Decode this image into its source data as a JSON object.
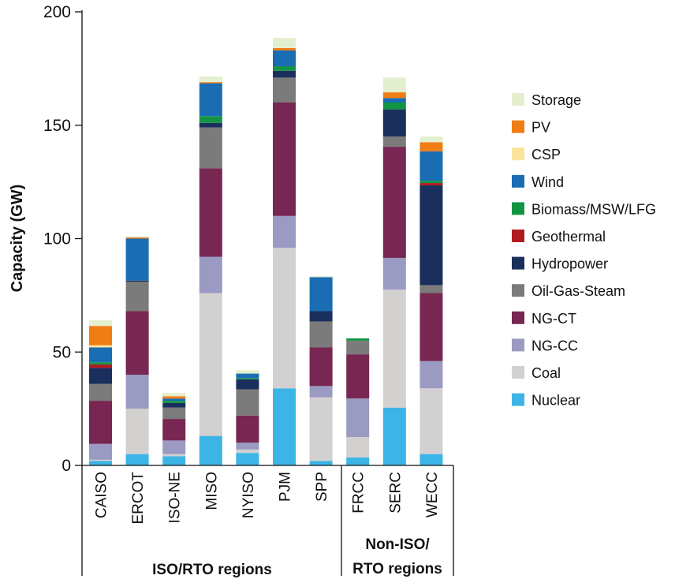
{
  "chart_data": {
    "type": "bar",
    "stacked": true,
    "title": "",
    "xlabel": "",
    "ylabel": "Capacity (GW)",
    "ylim": [
      0,
      200
    ],
    "yticks": [
      0,
      50,
      100,
      150,
      200
    ],
    "grid": false,
    "legend_position": "right",
    "categories": [
      "CAISO",
      "ERCOT",
      "ISO-NE",
      "MISO",
      "NYISO",
      "PJM",
      "SPP",
      "FRCC",
      "SERC",
      "WECC"
    ],
    "groups": [
      {
        "label": "ISO/RTO regions",
        "categories": [
          "CAISO",
          "ERCOT",
          "ISO-NE",
          "MISO",
          "NYISO",
          "PJM",
          "SPP"
        ]
      },
      {
        "label_lines": [
          "Non-ISO/",
          "RTO regions"
        ],
        "categories": [
          "FRCC",
          "SERC",
          "WECC"
        ]
      }
    ],
    "series": [
      {
        "name": "Nuclear",
        "color": "#3db4e6",
        "values": [
          2,
          5,
          4,
          13,
          5.5,
          34,
          2,
          3.5,
          25.5,
          5
        ]
      },
      {
        "name": "Coal",
        "color": "#d3d0d0",
        "values": [
          0.5,
          20,
          1,
          63,
          1.5,
          62,
          28,
          9,
          52,
          29
        ]
      },
      {
        "name": "NG-CC",
        "color": "#9b9ac2",
        "values": [
          7,
          15,
          6,
          16,
          3,
          14,
          5,
          17,
          14,
          12
        ]
      },
      {
        "name": "NG-CT",
        "color": "#772752",
        "values": [
          19,
          28,
          9.5,
          39,
          12,
          50,
          17,
          19.5,
          49,
          30
        ]
      },
      {
        "name": "Oil-Gas-Steam",
        "color": "#7b7b7b",
        "values": [
          7.5,
          13,
          5,
          18,
          11.5,
          11,
          11.5,
          6,
          4.5,
          3.5
        ]
      },
      {
        "name": "Hydropower",
        "color": "#1b2f5c",
        "values": [
          7,
          0.5,
          2,
          2,
          4.5,
          3,
          4.5,
          0,
          12,
          44
        ]
      },
      {
        "name": "Geothermal",
        "color": "#b11a20",
        "values": [
          1.5,
          0,
          0,
          0,
          0,
          0,
          0,
          0,
          0,
          1
        ]
      },
      {
        "name": "Biomass/MSW/LFG",
        "color": "#139443",
        "values": [
          1,
          0,
          1,
          3,
          0.5,
          2,
          0,
          1,
          3,
          1
        ]
      },
      {
        "name": "Wind",
        "color": "#1a6db3",
        "values": [
          6.5,
          18.5,
          1,
          14.5,
          2,
          7,
          15,
          0,
          2,
          13
        ]
      },
      {
        "name": "CSP",
        "color": "#fbe39a",
        "values": [
          1,
          0,
          0,
          0,
          0,
          0,
          0,
          0,
          0,
          0
        ]
      },
      {
        "name": "PV",
        "color": "#f07c14",
        "values": [
          8.5,
          0.5,
          1,
          0.5,
          0,
          1,
          0,
          0,
          2.5,
          4
        ]
      },
      {
        "name": "Storage",
        "color": "#e4efcf",
        "values": [
          2.5,
          0.5,
          1.5,
          2.5,
          1.5,
          4.5,
          0.5,
          0,
          6.5,
          2.5
        ]
      }
    ]
  }
}
